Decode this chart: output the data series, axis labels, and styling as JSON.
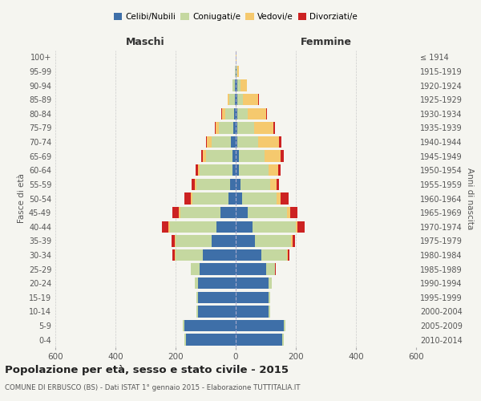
{
  "age_groups": [
    "0-4",
    "5-9",
    "10-14",
    "15-19",
    "20-24",
    "25-29",
    "30-34",
    "35-39",
    "40-44",
    "45-49",
    "50-54",
    "55-59",
    "60-64",
    "65-69",
    "70-74",
    "75-79",
    "80-84",
    "85-89",
    "90-94",
    "95-99",
    "100+"
  ],
  "birth_years": [
    "2010-2014",
    "2005-2009",
    "2000-2004",
    "1995-1999",
    "1990-1994",
    "1985-1989",
    "1980-1984",
    "1975-1979",
    "1970-1974",
    "1965-1969",
    "1960-1964",
    "1955-1959",
    "1950-1954",
    "1945-1949",
    "1940-1944",
    "1935-1939",
    "1930-1934",
    "1925-1929",
    "1920-1924",
    "1915-1919",
    "≤ 1914"
  ],
  "males": {
    "celibi": [
      165,
      170,
      125,
      125,
      125,
      120,
      110,
      80,
      65,
      50,
      25,
      20,
      10,
      10,
      15,
      7,
      5,
      3,
      2,
      0,
      0
    ],
    "coniugati": [
      5,
      5,
      5,
      5,
      10,
      30,
      90,
      120,
      155,
      135,
      120,
      110,
      110,
      90,
      65,
      50,
      30,
      18,
      8,
      2,
      0
    ],
    "vedovi": [
      0,
      0,
      0,
      0,
      0,
      0,
      3,
      3,
      5,
      5,
      5,
      5,
      5,
      10,
      15,
      10,
      10,
      5,
      0,
      0,
      0
    ],
    "divorziati": [
      0,
      0,
      0,
      0,
      0,
      0,
      8,
      10,
      20,
      20,
      20,
      12,
      8,
      5,
      5,
      3,
      3,
      0,
      0,
      0,
      0
    ]
  },
  "females": {
    "nubili": [
      155,
      160,
      110,
      110,
      110,
      100,
      85,
      65,
      55,
      40,
      20,
      15,
      10,
      10,
      5,
      5,
      5,
      5,
      5,
      2,
      0
    ],
    "coniugate": [
      5,
      5,
      5,
      5,
      10,
      30,
      85,
      120,
      145,
      130,
      115,
      100,
      100,
      85,
      70,
      55,
      35,
      20,
      12,
      3,
      0
    ],
    "vedove": [
      0,
      0,
      0,
      0,
      0,
      0,
      3,
      3,
      5,
      10,
      15,
      20,
      30,
      55,
      70,
      65,
      60,
      50,
      20,
      5,
      2
    ],
    "divorziate": [
      0,
      0,
      0,
      0,
      0,
      3,
      5,
      10,
      25,
      25,
      25,
      10,
      10,
      10,
      8,
      5,
      5,
      3,
      0,
      0,
      0
    ]
  },
  "colors": {
    "celibi": "#3e6fa8",
    "coniugati": "#c5d8a0",
    "vedovi": "#f5c96e",
    "divorziati": "#cc2222"
  },
  "title": "Popolazione per età, sesso e stato civile - 2015",
  "subtitle": "COMUNE DI ERBUSCO (BS) - Dati ISTAT 1° gennaio 2015 - Elaborazione TUTTITALIA.IT",
  "xlabel_left": "Maschi",
  "xlabel_right": "Femmine",
  "ylabel_left": "Fasce di età",
  "ylabel_right": "Anni di nascita",
  "xlim": 600,
  "bg_color": "#f5f5f0",
  "grid_color": "#cccccc"
}
